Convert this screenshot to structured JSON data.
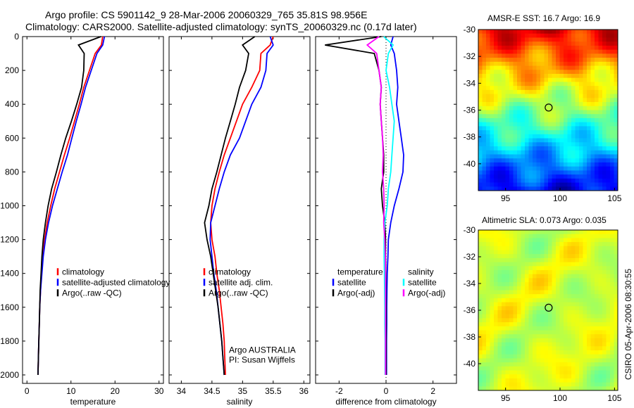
{
  "header": {
    "title_line1": "Argo profile: CS 5901142_9 28-Mar-2006 20060329_765 35.81S 98.956E",
    "title_line2": "Climatology: CARS2000. Satellite-adjusted climatology: synTS_20060329.nc (0.17d later)"
  },
  "maps_titles": {
    "sst": "AMSR-E SST: 16.7 Argo: 16.9",
    "sla": "Altimetric SLA: 0.073 Argo: 0.035"
  },
  "stamp": "CSIRO 05-Apr-2006 08:30:55",
  "colors": {
    "climatology": "#ff0000",
    "satellite": "#0000ff",
    "argo": "#000000",
    "salinity_satellite": "#00ffff",
    "salinity_argo": "#ff00ff"
  },
  "chart_data": [
    {
      "type": "line",
      "xlabel": "temperature",
      "ylim": [
        0,
        2050
      ],
      "y_reversed": true,
      "xlim": [
        -1,
        31
      ],
      "xticks": [
        0,
        10,
        20,
        30
      ],
      "yticks": [
        0,
        200,
        400,
        600,
        800,
        1000,
        1200,
        1400,
        1600,
        1800,
        2000
      ],
      "legend": [
        "climatology",
        "satellite-adjusted climatology",
        "Argo(..raw -QC)"
      ],
      "depth": [
        0,
        50,
        100,
        200,
        300,
        400,
        500,
        600,
        700,
        800,
        900,
        1000,
        1100,
        1200,
        1300,
        1400,
        1500,
        1600,
        1700,
        1800,
        1900,
        2000
      ],
      "series": [
        {
          "name": "climatology",
          "color": "#ff0000",
          "values": [
            17.2,
            16.9,
            15.5,
            14.2,
            12.9,
            11.9,
            10.8,
            9.7,
            8.5,
            7.4,
            6.3,
            5.4,
            4.6,
            4.0,
            3.6,
            3.3,
            3.1,
            2.9,
            2.8,
            2.7,
            2.6,
            2.5
          ]
        },
        {
          "name": "satellite-adjusted climatology",
          "color": "#0000ff",
          "values": [
            17.6,
            17.2,
            15.9,
            14.6,
            13.3,
            12.3,
            11.2,
            10.2,
            9.2,
            8.0,
            6.9,
            5.8,
            4.9,
            4.2,
            3.7,
            3.4,
            3.1,
            2.9,
            2.8,
            2.7,
            2.6,
            2.5
          ]
        },
        {
          "name": "Argo(..raw -QC)",
          "color": "#000000",
          "values": [
            16.8,
            11.7,
            13.0,
            12.9,
            12.4,
            11.3,
            10.1,
            8.8,
            7.7,
            6.7,
            5.6,
            4.8,
            4.2,
            3.7,
            3.4,
            3.2,
            3.0,
            2.9,
            2.8,
            2.7,
            2.6,
            2.5
          ]
        }
      ]
    },
    {
      "type": "line",
      "xlabel": "salinity",
      "ylim": [
        0,
        2050
      ],
      "y_reversed": true,
      "xlim": [
        33.8,
        36.1
      ],
      "xticks": [
        34,
        34.5,
        35,
        35.5,
        36
      ],
      "yticks": [
        0,
        200,
        400,
        600,
        800,
        1000,
        1200,
        1400,
        1600,
        1800,
        2000
      ],
      "legend": [
        "climatology",
        "satellite adj. clim.",
        "Argo(..raw -QC)"
      ],
      "annotation": [
        "Argo AUSTRALIA",
        "PI: Susan Wijffels"
      ],
      "depth": [
        0,
        50,
        100,
        200,
        300,
        400,
        500,
        600,
        700,
        800,
        900,
        1000,
        1100,
        1200,
        1300,
        1400,
        1500,
        1600,
        1700,
        1800,
        1900,
        2000
      ],
      "series": [
        {
          "name": "climatology",
          "color": "#ff0000",
          "values": [
            35.5,
            35.45,
            35.3,
            35.28,
            35.15,
            35.0,
            34.9,
            34.8,
            34.7,
            34.62,
            34.55,
            34.5,
            34.48,
            34.5,
            34.55,
            34.58,
            34.62,
            34.65,
            34.68,
            34.7,
            34.71,
            34.72
          ]
        },
        {
          "name": "satellite adj. clim.",
          "color": "#0000ff",
          "values": [
            35.45,
            35.5,
            35.4,
            35.38,
            35.3,
            35.15,
            35.05,
            34.95,
            34.8,
            34.7,
            34.62,
            34.55,
            34.48,
            34.47,
            34.5,
            34.53,
            34.57,
            34.6,
            34.63,
            34.66,
            34.68,
            34.7
          ]
        },
        {
          "name": "Argo(..raw -QC)",
          "color": "#000000",
          "values": [
            35.2,
            35.0,
            35.1,
            35.05,
            34.95,
            34.88,
            34.8,
            34.72,
            34.65,
            34.58,
            34.5,
            34.45,
            34.38,
            34.42,
            34.48,
            34.52,
            34.56,
            34.6,
            34.63,
            34.66,
            34.68,
            34.7
          ]
        }
      ]
    },
    {
      "type": "line",
      "xlabel": "difference from climatology",
      "ylim": [
        0,
        2050
      ],
      "y_reversed": true,
      "xlim": [
        -3,
        3
      ],
      "xticks": [
        -2,
        0,
        2
      ],
      "yticks": [
        0,
        200,
        400,
        600,
        800,
        1000,
        1200,
        1400,
        1600,
        1800,
        2000
      ],
      "legend_temperature": [
        "temperature",
        "satellite",
        "Argo(-adj)"
      ],
      "legend_salinity": [
        "salinity",
        "satellite",
        "Argo(-adj)"
      ],
      "depth": [
        0,
        50,
        100,
        200,
        300,
        400,
        500,
        600,
        700,
        800,
        900,
        1000,
        1100,
        1200,
        1300,
        1400,
        1500,
        1600,
        1700,
        1800,
        1900,
        2000
      ],
      "series": [
        {
          "name": "temperature satellite",
          "color": "#0000ff",
          "values": [
            0.3,
            0.2,
            0.35,
            0.45,
            0.5,
            0.45,
            0.55,
            0.65,
            0.75,
            0.72,
            0.55,
            0.35,
            0.2,
            0.1,
            0.08,
            0.05,
            0.04,
            0.03,
            0.03,
            0.02,
            0.02,
            0.02
          ]
        },
        {
          "name": "temperature Argo(-adj)",
          "color": "#000000",
          "values": [
            -0.2,
            -2.6,
            -0.5,
            -0.3,
            -0.2,
            -0.25,
            -0.2,
            -0.15,
            -0.1,
            -0.1,
            -0.2,
            -0.15,
            -0.05,
            -0.02,
            -0.02,
            -0.01,
            -0.01,
            0.0,
            0.0,
            0.0,
            0.0,
            0.0
          ]
        },
        {
          "name": "salinity satellite",
          "color": "#00ffff",
          "values": [
            -0.1,
            0.3,
            0.1,
            0.0,
            0.15,
            0.25,
            0.35,
            0.3,
            0.25,
            0.2,
            0.1,
            0.05,
            -0.05,
            -0.08,
            -0.08,
            -0.07,
            -0.06,
            -0.05,
            -0.05,
            -0.04,
            -0.04,
            -0.04
          ]
        },
        {
          "name": "salinity Argo(-adj)",
          "color": "#ff00ff",
          "values": [
            -0.3,
            -0.8,
            -0.4,
            -0.3,
            -0.2,
            -0.25,
            -0.2,
            -0.15,
            -0.12,
            -0.15,
            -0.1,
            -0.08,
            -0.1,
            -0.05,
            -0.03,
            -0.02,
            -0.02,
            -0.02,
            -0.02,
            -0.02,
            -0.02,
            -0.02
          ]
        }
      ]
    },
    {
      "type": "heatmap",
      "title": "AMSR-E SST: 16.7 Argo: 16.9",
      "xlim": [
        92.5,
        105.3
      ],
      "ylim": [
        -42,
        -30
      ],
      "xticks": [
        95,
        100,
        105
      ],
      "yticks": [
        -30,
        -32,
        -34,
        -36,
        -38,
        -40
      ],
      "marker": {
        "lon": 98.956,
        "lat": -35.81
      }
    },
    {
      "type": "heatmap",
      "title": "Altimetric SLA: 0.073 Argo: 0.035",
      "xlim": [
        92.5,
        105.3
      ],
      "ylim": [
        -42,
        -30
      ],
      "xticks": [
        95,
        100,
        105
      ],
      "yticks": [
        -30,
        -32,
        -34,
        -36,
        -38,
        -40
      ],
      "marker": {
        "lon": 98.956,
        "lat": -35.81
      }
    }
  ]
}
